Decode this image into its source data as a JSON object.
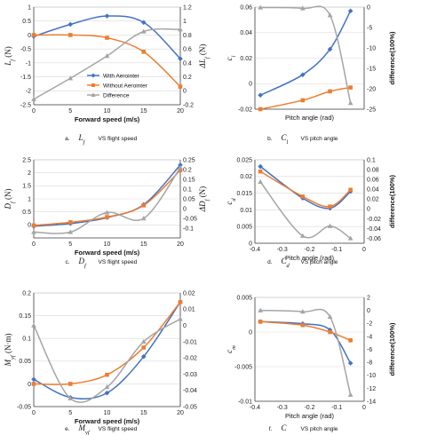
{
  "colors": {
    "aero": "#4472c4",
    "noaero": "#ed7d31",
    "diff": "#a5a5a5",
    "grid": "#d9d9d9"
  },
  "chart_data": [
    {
      "type": "line",
      "ylabel": "L_f (N)",
      "y2label": "ΔL_f (N)",
      "xlabel": "Forward speed (m/s)",
      "caption_letter": "a.",
      "caption_symbol": "L_f",
      "caption_text": "VS flight speed",
      "xlim": [
        0,
        20
      ],
      "ylim": [
        -2.5,
        1
      ],
      "y2lim": [
        -0.2,
        1.2
      ],
      "xticks": [
        0,
        5,
        10,
        15,
        20
      ],
      "yticks": [
        -2.5,
        -2,
        -1.5,
        -1,
        -0.5,
        0,
        0.5,
        1
      ],
      "y2ticks": [
        -0.2,
        0,
        0.2,
        0.4,
        0.6,
        0.8,
        1,
        1.2
      ],
      "legend_placement": "bottom-center",
      "series": [
        {
          "name": "With Aerointer",
          "axis": "left",
          "x": [
            0,
            5,
            10,
            15,
            20
          ],
          "values": [
            -0.05,
            0.38,
            0.68,
            0.45,
            -0.85
          ]
        },
        {
          "name": "Without Aerointer",
          "axis": "left",
          "x": [
            0,
            5,
            10,
            15,
            20
          ],
          "values": [
            0.0,
            0.0,
            -0.1,
            -0.6,
            -1.85
          ]
        },
        {
          "name": "Difference",
          "axis": "right",
          "x": [
            0,
            5,
            10,
            15,
            20
          ],
          "values": [
            -0.12,
            0.18,
            0.5,
            0.85,
            0.88
          ]
        }
      ]
    },
    {
      "type": "line",
      "ylabel": "c_l",
      "y2label": "difference(100%)",
      "xlabel": "Pitch angle (rad)",
      "caption_letter": "b.",
      "caption_symbol": "C_l",
      "caption_text": "VS pitch angle",
      "xlim": [
        -0.4,
        0
      ],
      "ylim": [
        -0.02,
        0.06
      ],
      "y2lim": [
        -25,
        0
      ],
      "xticks": [],
      "yticks": [
        -0.02,
        0,
        0.02,
        0.04,
        0.06
      ],
      "y2ticks": [
        -25,
        -20,
        -15,
        -10,
        -5,
        0
      ],
      "series": [
        {
          "name": "With Aerointer",
          "axis": "left",
          "x": [
            -0.38,
            -0.225,
            -0.125,
            -0.05
          ],
          "values": [
            -0.009,
            0.007,
            0.027,
            0.057
          ]
        },
        {
          "name": "Without Aerointer",
          "axis": "left",
          "x": [
            -0.38,
            -0.225,
            -0.125,
            -0.05
          ],
          "values": [
            -0.02,
            -0.013,
            -0.006,
            -0.003
          ]
        },
        {
          "name": "Difference",
          "axis": "right",
          "x": [
            -0.38,
            -0.225,
            -0.125,
            -0.05
          ],
          "values": [
            -0.1,
            -0.3,
            -2.0,
            -23.5
          ]
        }
      ]
    },
    {
      "type": "line",
      "ylabel": "D_f (N)",
      "y2label": "ΔD_f (N)",
      "xlabel": "Forward speed (m/s)",
      "caption_letter": "c.",
      "caption_symbol": "D_f",
      "caption_text": "VS flight speed",
      "xlim": [
        0,
        20
      ],
      "ylim": [
        -0.5,
        2.5
      ],
      "y2lim": [
        -0.15,
        0.25
      ],
      "xticks": [
        0,
        5,
        10,
        15,
        20
      ],
      "yticks": [
        0,
        0.5,
        1,
        1.5,
        2,
        2.5
      ],
      "y2ticks": [
        -0.1,
        -0.05,
        0,
        0.05,
        0.1,
        0.15,
        0.2,
        0.25
      ],
      "series": [
        {
          "name": "With Aerointer",
          "axis": "left",
          "x": [
            0,
            5,
            10,
            15,
            20
          ],
          "values": [
            -0.05,
            0.05,
            0.28,
            0.78,
            2.3
          ]
        },
        {
          "name": "Without Aerointer",
          "axis": "left",
          "x": [
            0,
            5,
            10,
            15,
            20
          ],
          "values": [
            -0.02,
            0.1,
            0.3,
            0.75,
            2.1
          ]
        },
        {
          "name": "Difference",
          "axis": "right",
          "x": [
            0,
            5,
            10,
            15,
            20
          ],
          "values": [
            -0.12,
            -0.12,
            -0.02,
            -0.05,
            0.21
          ]
        }
      ]
    },
    {
      "type": "line",
      "ylabel": "c_d",
      "y2label": "difference(100%)",
      "xlabel": "Pitch angle (rad)",
      "caption_letter": "d.",
      "caption_symbol": "C_d",
      "caption_text": "VS pitch angle",
      "xlim": [
        -0.4,
        0
      ],
      "ylim": [
        0,
        0.025
      ],
      "y2lim": [
        -0.07,
        0.1
      ],
      "xticks": [
        -0.4,
        -0.3,
        -0.2,
        -0.1,
        0
      ],
      "yticks": [
        0,
        0.005,
        0.01,
        0.015,
        0.02,
        0.025
      ],
      "y2ticks": [
        -0.06,
        -0.04,
        -0.02,
        0,
        0.02,
        0.04,
        0.06,
        0.08,
        0.1
      ],
      "series": [
        {
          "name": "With Aerointer",
          "axis": "left",
          "x": [
            -0.38,
            -0.225,
            -0.125,
            -0.05
          ],
          "values": [
            0.023,
            0.0135,
            0.0105,
            0.0155
          ]
        },
        {
          "name": "Without Aerointer",
          "axis": "left",
          "x": [
            -0.38,
            -0.225,
            -0.125,
            -0.05
          ],
          "values": [
            0.0215,
            0.014,
            0.011,
            0.016
          ]
        },
        {
          "name": "Difference",
          "axis": "right",
          "x": [
            -0.38,
            -0.225,
            -0.125,
            -0.05
          ],
          "values": [
            0.055,
            -0.055,
            -0.035,
            -0.06
          ]
        }
      ]
    },
    {
      "type": "line",
      "ylabel": "M_yf (N·m)",
      "y2label": "",
      "xlabel": "Forward speed (m/s)",
      "caption_letter": "e.",
      "caption_symbol": "M_yf",
      "caption_text": "VS flight speed",
      "xlim": [
        0,
        20
      ],
      "ylim": [
        -0.05,
        0.2
      ],
      "y2lim": [
        -0.05,
        0.02
      ],
      "xticks": [
        0,
        5,
        10,
        15,
        20
      ],
      "yticks": [
        -0.05,
        0,
        0.05,
        0.1,
        0.15,
        0.2
      ],
      "y2ticks": [
        -0.05,
        -0.04,
        -0.03,
        -0.02,
        -0.01,
        0,
        0.01,
        0.02
      ],
      "series": [
        {
          "name": "With Aerointer",
          "axis": "left",
          "x": [
            0,
            5,
            10,
            15,
            20
          ],
          "values": [
            0.01,
            -0.03,
            -0.02,
            0.06,
            0.18
          ]
        },
        {
          "name": "Without Aerointer",
          "axis": "left",
          "x": [
            0,
            5,
            10,
            15,
            20
          ],
          "values": [
            0.0,
            0.0,
            0.02,
            0.08,
            0.18
          ]
        },
        {
          "name": "Difference",
          "axis": "right",
          "x": [
            0,
            5,
            10,
            15,
            20
          ],
          "values": [
            0.0,
            -0.045,
            -0.038,
            -0.01,
            0.004
          ]
        }
      ]
    },
    {
      "type": "line",
      "ylabel": "c_m",
      "y2label": "difference(100%)",
      "xlabel": "Pitch angle (rad)",
      "caption_letter": "f.",
      "caption_symbol": "C",
      "caption_text": "VS pitch angle",
      "xlim": [
        -0.4,
        0
      ],
      "ylim": [
        -0.01,
        0.005
      ],
      "y2lim": [
        -14,
        2
      ],
      "xticks": [
        -0.4,
        -0.3,
        -0.2,
        -0.1,
        0
      ],
      "yticks": [
        -0.01,
        -0.005,
        0,
        0.005
      ],
      "y2ticks": [
        -14,
        -12,
        -10,
        -8,
        -6,
        -4,
        -2,
        0,
        2
      ],
      "series": [
        {
          "name": "With Aerointer",
          "axis": "left",
          "x": [
            -0.38,
            -0.225,
            -0.125,
            -0.05
          ],
          "values": [
            0.0015,
            0.0012,
            0.0003,
            -0.0045
          ]
        },
        {
          "name": "Without Aerointer",
          "axis": "left",
          "x": [
            -0.38,
            -0.225,
            -0.125,
            -0.05
          ],
          "values": [
            0.0015,
            0.001,
            0.0,
            -0.0012
          ]
        },
        {
          "name": "Difference",
          "axis": "right",
          "x": [
            -0.38,
            -0.225,
            -0.125,
            -0.05
          ],
          "values": [
            0.0,
            -0.2,
            -1.0,
            -13.0
          ]
        }
      ]
    }
  ]
}
